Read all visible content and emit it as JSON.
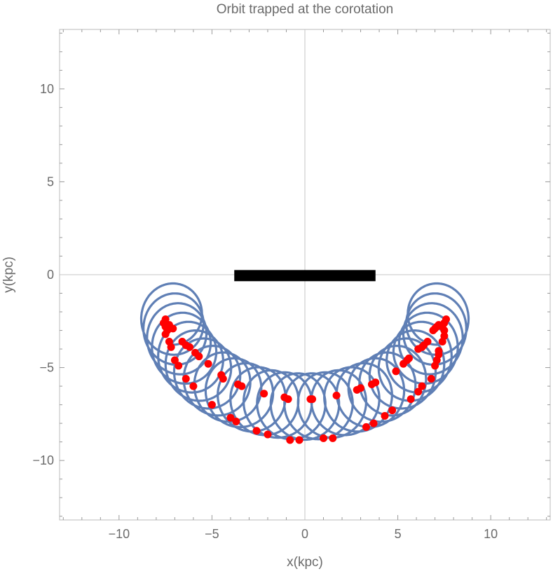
{
  "chart_data": {
    "type": "scatter",
    "title": "Orbit trapped at the corotation",
    "xlabel": "x(kpc)",
    "ylabel": "y(kpc)",
    "xlim": [
      -13.2,
      13.2
    ],
    "ylim": [
      -13.2,
      13.2
    ],
    "xticks": [
      -10,
      -5,
      0,
      5,
      10
    ],
    "yticks": [
      10,
      5,
      0,
      -5,
      -10
    ],
    "xtick_labels": [
      "−10",
      "−5",
      "0",
      "5",
      "10"
    ],
    "ytick_labels": [
      "10",
      "5",
      "0",
      "−5",
      "−10"
    ],
    "minor_tick_step": 1,
    "grid": false,
    "zero_axes": true,
    "bar": {
      "x_range": [
        -3.8,
        3.8
      ],
      "y": -0.05,
      "half_height": 0.3,
      "color": "#000000"
    },
    "orbit": {
      "color": "#5f7fb5",
      "guiding_center_path": {
        "amplitude_x": 7.2,
        "center_y": -1.8,
        "radius_y": 5.3,
        "angle_span_deg": [
          -88,
          88
        ]
      },
      "loop_radius": 1.65,
      "loops": 30
    },
    "points_color": "#ff0000",
    "points": [
      [
        -7.5,
        -2.4
      ],
      [
        -7.6,
        -2.6
      ],
      [
        -7.5,
        -2.8
      ],
      [
        -7.3,
        -2.7
      ],
      [
        -7.1,
        -2.9
      ],
      [
        -7.4,
        -3.0
      ],
      [
        -7.5,
        -3.2
      ],
      [
        -7.3,
        -3.6
      ],
      [
        -7.2,
        -3.9
      ],
      [
        -6.6,
        -3.6
      ],
      [
        -6.4,
        -3.8
      ],
      [
        -6.2,
        -3.9
      ],
      [
        -7.0,
        -4.6
      ],
      [
        -6.8,
        -4.9
      ],
      [
        -5.9,
        -4.2
      ],
      [
        -5.7,
        -4.4
      ],
      [
        -6.4,
        -5.6
      ],
      [
        -6.0,
        -6.0
      ],
      [
        -5.2,
        -4.8
      ],
      [
        -4.5,
        -5.4
      ],
      [
        -4.4,
        -5.6
      ],
      [
        -5.0,
        -7.0
      ],
      [
        -3.6,
        -5.9
      ],
      [
        -3.4,
        -6.0
      ],
      [
        -4.0,
        -7.7
      ],
      [
        -3.7,
        -7.9
      ],
      [
        -2.2,
        -6.4
      ],
      [
        -2.6,
        -8.4
      ],
      [
        -2.0,
        -8.6
      ],
      [
        -1.1,
        -6.6
      ],
      [
        -0.9,
        -6.7
      ],
      [
        -0.8,
        -8.9
      ],
      [
        -0.3,
        -8.9
      ],
      [
        0.3,
        -6.7
      ],
      [
        0.4,
        -6.7
      ],
      [
        1.0,
        -8.8
      ],
      [
        1.5,
        -8.8
      ],
      [
        1.7,
        -6.5
      ],
      [
        2.8,
        -6.2
      ],
      [
        3.0,
        -6.1
      ],
      [
        3.3,
        -8.2
      ],
      [
        3.7,
        -8.0
      ],
      [
        3.6,
        -5.9
      ],
      [
        3.8,
        -5.8
      ],
      [
        4.3,
        -7.6
      ],
      [
        4.7,
        -7.3
      ],
      [
        4.9,
        -5.2
      ],
      [
        5.3,
        -4.8
      ],
      [
        5.5,
        -4.6
      ],
      [
        5.6,
        -4.5
      ],
      [
        5.7,
        -6.7
      ],
      [
        6.1,
        -6.3
      ],
      [
        6.3,
        -6.0
      ],
      [
        6.1,
        -4.0
      ],
      [
        6.3,
        -3.9
      ],
      [
        6.4,
        -3.8
      ],
      [
        6.6,
        -3.6
      ],
      [
        6.8,
        -5.6
      ],
      [
        7.0,
        -4.9
      ],
      [
        7.1,
        -4.6
      ],
      [
        7.2,
        -4.3
      ],
      [
        7.2,
        -4.1
      ],
      [
        7.4,
        -3.6
      ],
      [
        7.5,
        -3.3
      ],
      [
        6.9,
        -3.0
      ],
      [
        7.0,
        -2.9
      ],
      [
        7.1,
        -2.8
      ],
      [
        7.2,
        -2.7
      ],
      [
        7.4,
        -2.8
      ],
      [
        7.5,
        -2.6
      ],
      [
        7.6,
        -2.4
      ],
      [
        7.5,
        -3.0
      ]
    ]
  }
}
